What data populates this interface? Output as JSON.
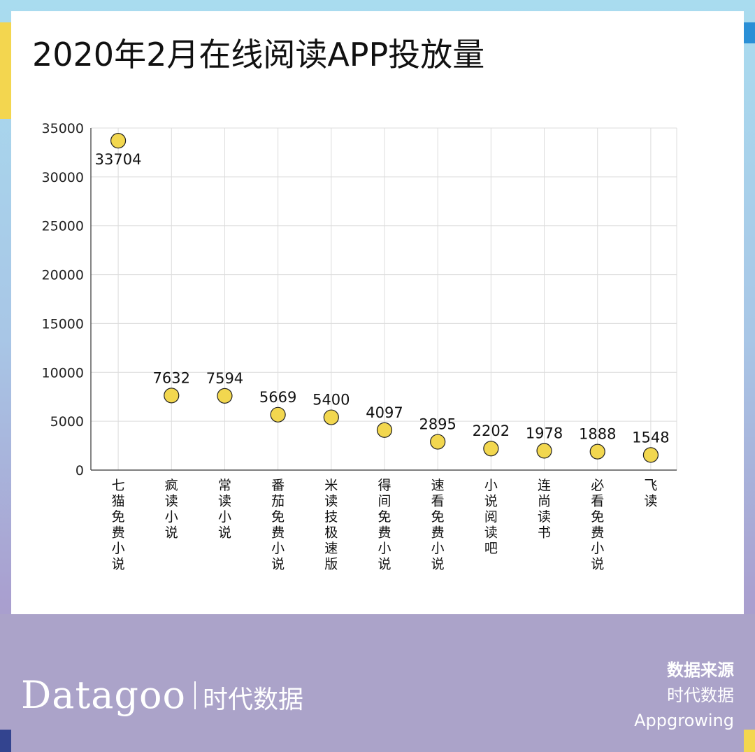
{
  "title": "2020年2月在线阅读APP投放量",
  "colors": {
    "point_fill": "#f2d74f",
    "point_stroke": "#222222",
    "grid": "#dcdcdc",
    "axis": "#333333"
  },
  "chart_data": {
    "type": "scatter",
    "title": "2020年2月在线阅读APP投放量",
    "categories": [
      "七猫免费小说",
      "疯读小说",
      "常读小说",
      "番茄免费小说",
      "米读技极速版",
      "得间免费小说",
      "速看免费小说",
      "小说阅读吧",
      "连尚读书",
      "必看免费小说",
      "飞读"
    ],
    "values": [
      33704,
      7632,
      7594,
      5669,
      5400,
      4097,
      2895,
      2202,
      1978,
      1888,
      1548
    ],
    "labels": [
      "33704",
      "7632",
      "7594",
      "5669",
      "5400",
      "4097",
      "2895",
      "2202",
      "1978",
      "1888",
      "1548"
    ],
    "label_below_first": true,
    "ylim": [
      0,
      35000
    ],
    "yticks": [
      "0",
      "5000",
      "10000",
      "15000",
      "20000",
      "25000",
      "30000",
      "35000"
    ],
    "ytick_values": [
      0,
      5000,
      10000,
      15000,
      20000,
      25000,
      30000,
      35000
    ],
    "grid": true,
    "xlabel": "",
    "ylabel": ""
  },
  "footer": {
    "brand_en": "Datagoo",
    "brand_cn": "时代数据",
    "source_label": "数据来源",
    "source_lines": [
      "时代数据",
      "Appgrowing"
    ]
  }
}
